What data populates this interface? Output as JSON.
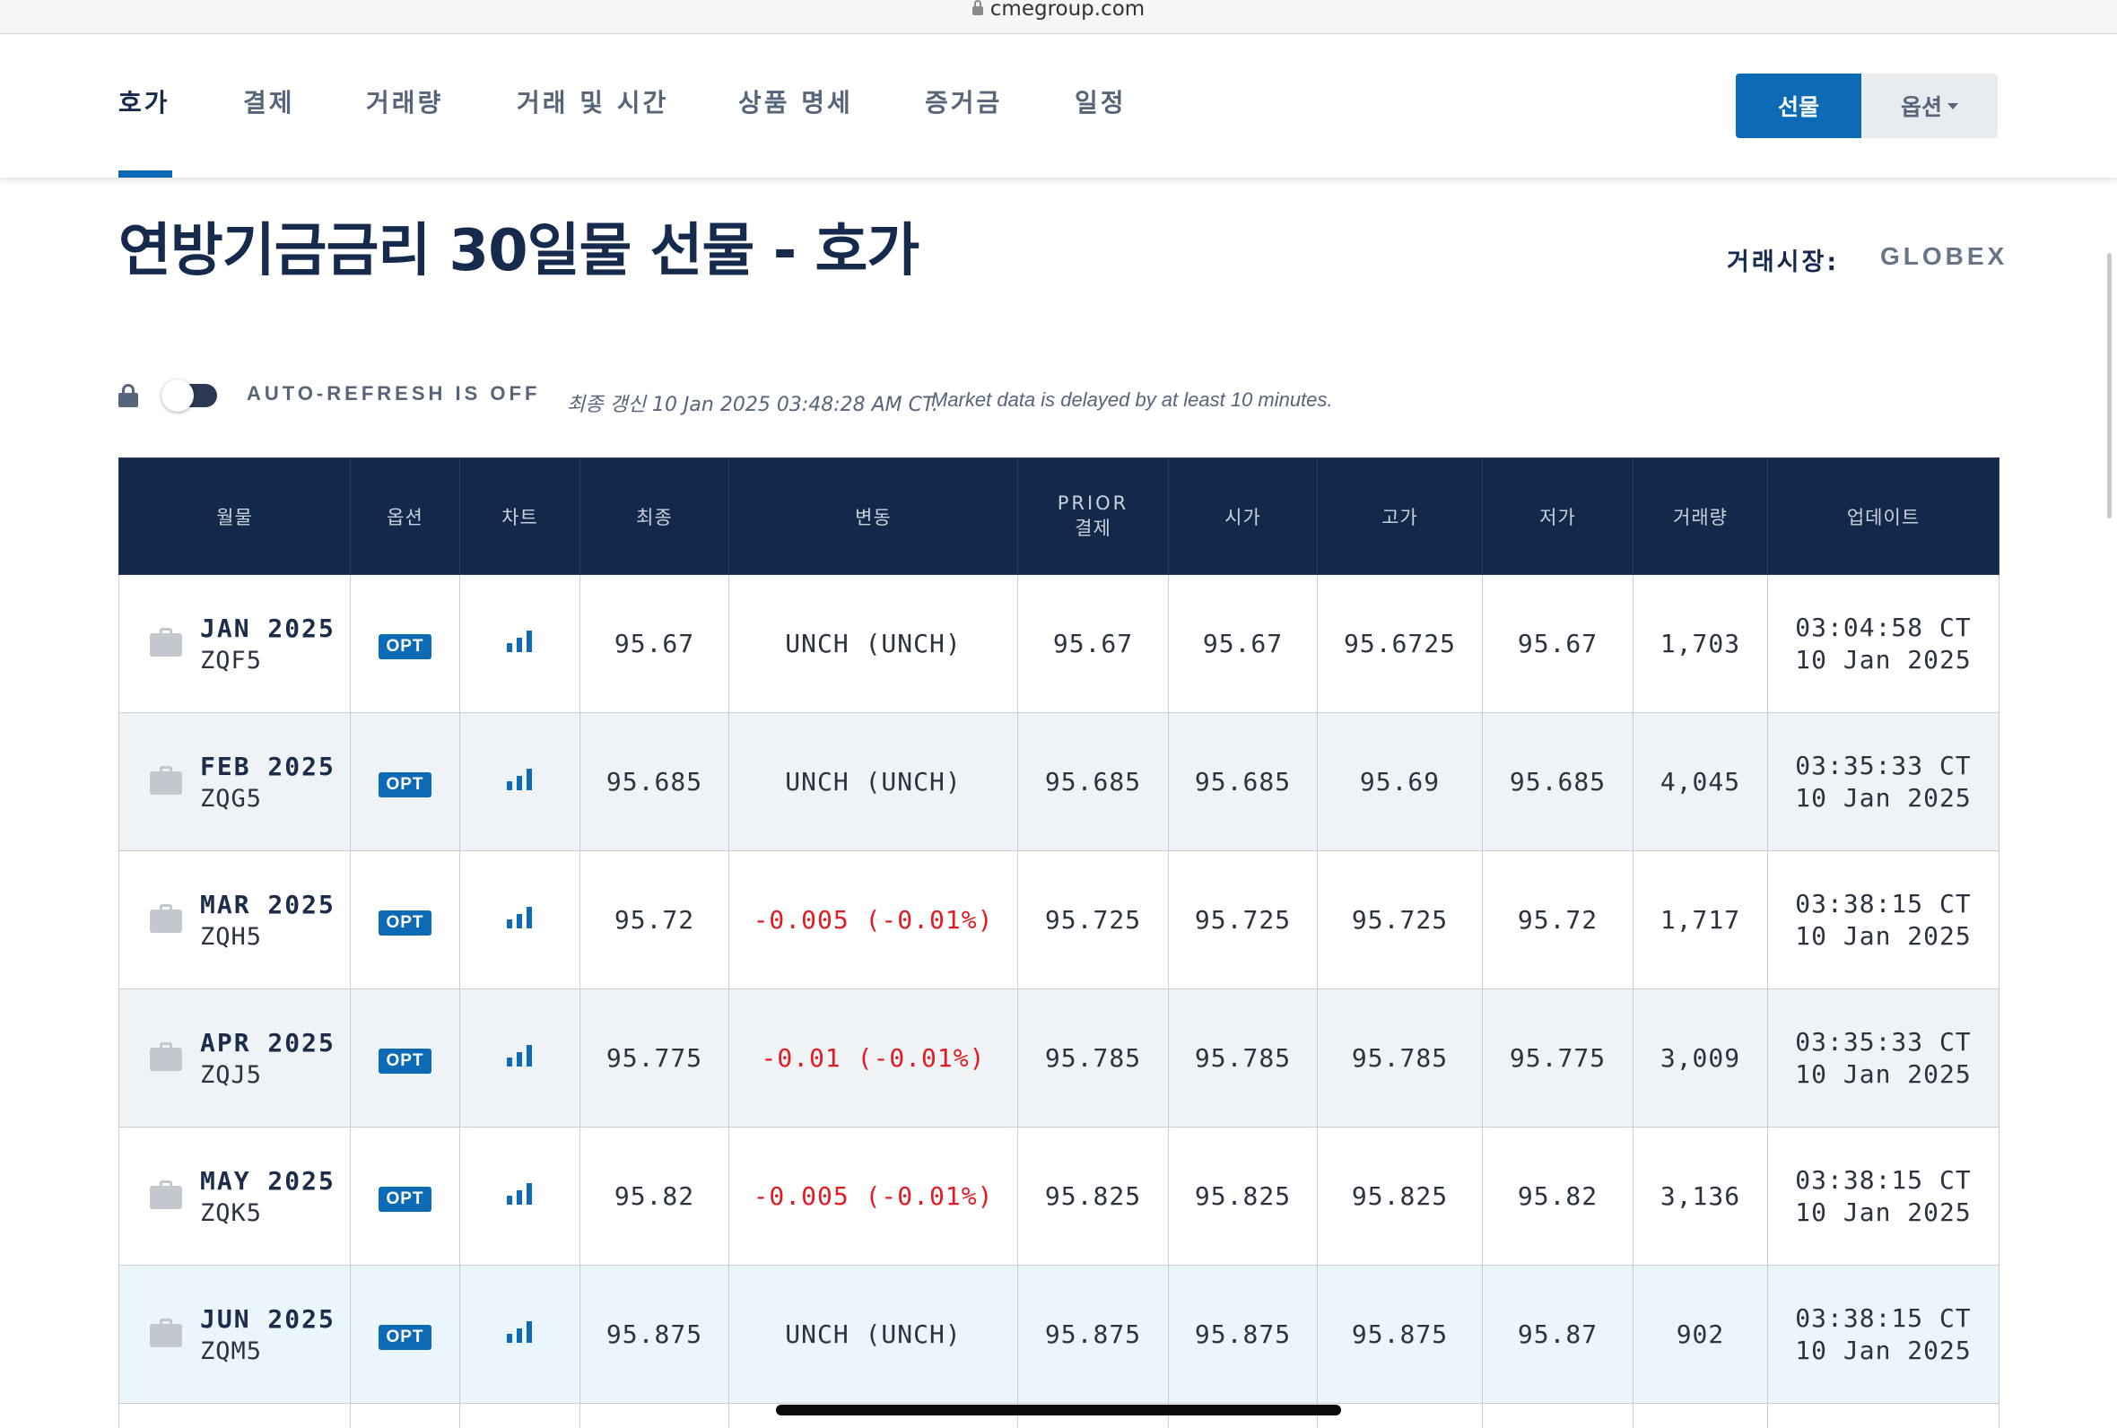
{
  "browser": {
    "url": "cmegroup.com"
  },
  "nav": {
    "tabs": [
      "호가",
      "결제",
      "거래량",
      "거래 및 시간",
      "상품 명세",
      "증거금",
      "일정"
    ],
    "active_tab": "호가",
    "futures_label": "선물",
    "options_label": "옵션"
  },
  "page": {
    "title": "연방기금금리 30일물 선물 - 호가",
    "venue_label": "거래시장:",
    "venue_value": "GLOBEX"
  },
  "refresh": {
    "status": "AUTO-REFRESH IS OFF",
    "last_updated": "최종 갱신 10 Jan 2025 03:48:28 AM CT.",
    "delay_note": "Market data is delayed by at least 10 minutes."
  },
  "table": {
    "headers": {
      "month": "월물",
      "options": "옵션",
      "chart": "차트",
      "last": "최종",
      "change": "변동",
      "prior_line1": "PRIOR",
      "prior_line2": "결제",
      "open": "시가",
      "high": "고가",
      "low": "저가",
      "volume": "거래량",
      "updated": "업데이트"
    },
    "opt_label": "OPT",
    "rows": [
      {
        "month": "JAN 2025",
        "code": "ZQF5",
        "last": "95.67",
        "change": "UNCH (UNCH)",
        "prior": "95.67",
        "open": "95.67",
        "high": "95.6725",
        "low": "95.67",
        "volume": "1,703",
        "time": "03:04:58 CT",
        "date": "10 Jan 2025"
      },
      {
        "month": "FEB 2025",
        "code": "ZQG5",
        "last": "95.685",
        "change": "UNCH (UNCH)",
        "prior": "95.685",
        "open": "95.685",
        "high": "95.69",
        "low": "95.685",
        "volume": "4,045",
        "time": "03:35:33 CT",
        "date": "10 Jan 2025"
      },
      {
        "month": "MAR 2025",
        "code": "ZQH5",
        "last": "95.72",
        "change": "-0.005 (-0.01%)",
        "prior": "95.725",
        "open": "95.725",
        "high": "95.725",
        "low": "95.72",
        "volume": "1,717",
        "time": "03:38:15 CT",
        "date": "10 Jan 2025"
      },
      {
        "month": "APR 2025",
        "code": "ZQJ5",
        "last": "95.775",
        "change": "-0.01 (-0.01%)",
        "prior": "95.785",
        "open": "95.785",
        "high": "95.785",
        "low": "95.775",
        "volume": "3,009",
        "time": "03:35:33 CT",
        "date": "10 Jan 2025"
      },
      {
        "month": "MAY 2025",
        "code": "ZQK5",
        "last": "95.82",
        "change": "-0.005 (-0.01%)",
        "prior": "95.825",
        "open": "95.825",
        "high": "95.825",
        "low": "95.82",
        "volume": "3,136",
        "time": "03:38:15 CT",
        "date": "10 Jan 2025"
      },
      {
        "month": "JUN 2025",
        "code": "ZQM5",
        "last": "95.875",
        "change": "UNCH (UNCH)",
        "prior": "95.875",
        "open": "95.875",
        "high": "95.875",
        "low": "95.87",
        "volume": "902",
        "time": "03:38:15 CT",
        "date": "10 Jan 2025"
      }
    ]
  },
  "colors": {
    "header_bg": "#13294b",
    "accent_blue": "#0d6ab5",
    "negative_red": "#e11b22",
    "alt_row_bg": "#eff3f6",
    "highlight_row_bg": "#eaf6fb"
  },
  "icons": [
    "lock-icon",
    "toggle-switch",
    "briefcase-icon",
    "bar-chart-icon",
    "caret-down-icon"
  ]
}
